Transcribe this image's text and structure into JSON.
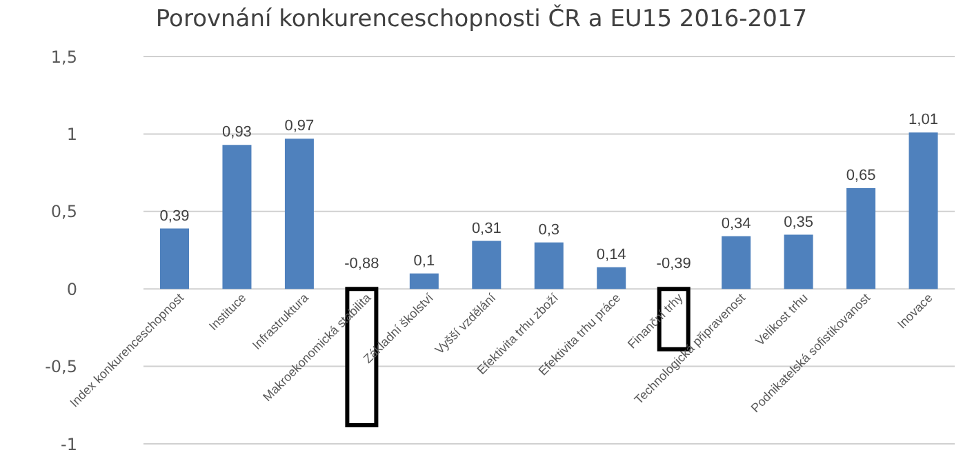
{
  "chart_data": {
    "type": "bar",
    "title": "Porovnání konkurenceschopnosti ČR a EU15 2016-2017",
    "categories": [
      "Index konkurenceschopnost",
      "Instituce",
      "Infrastruktura",
      "Makroekonomická stabilita",
      "Základní školství",
      "Vyšší vzdělání",
      "Efektivita trhu zboží",
      "Efektivita trhu práce",
      "Finanční trhy",
      "Technologická připravenost",
      "Velikost trhu",
      "Podnikatelská sofistikovanost",
      "Inovace"
    ],
    "values": [
      0.39,
      0.93,
      0.97,
      -0.88,
      0.1,
      0.31,
      0.3,
      0.14,
      -0.39,
      0.34,
      0.35,
      0.65,
      1.01
    ],
    "colors": [
      "#4f81bd",
      "#4f81bd",
      "#4f81bd",
      "#ffffff",
      "#4f81bd",
      "#4f81bd",
      "#4f81bd",
      "#4f81bd",
      "#ffffff",
      "#4f81bd",
      "#4f81bd",
      "#4f81bd",
      "#4f81bd"
    ],
    "value_labels": [
      "0,39",
      "0,93",
      "0,97",
      "-0,88",
      "0,1",
      "0,31",
      "0,3",
      "0,14",
      "-0,39",
      "0,34",
      "0,35",
      "0,65",
      "1,01"
    ],
    "ylim": [
      -1,
      1.5
    ],
    "yticks": [
      {
        "value": -1,
        "label": "-1"
      },
      {
        "value": -0.5,
        "label": "-0,5"
      },
      {
        "value": 0,
        "label": "0"
      },
      {
        "value": 0.5,
        "label": "0,5"
      },
      {
        "value": 1,
        "label": "1"
      },
      {
        "value": 1.5,
        "label": "1,5"
      }
    ],
    "grid": "y"
  }
}
